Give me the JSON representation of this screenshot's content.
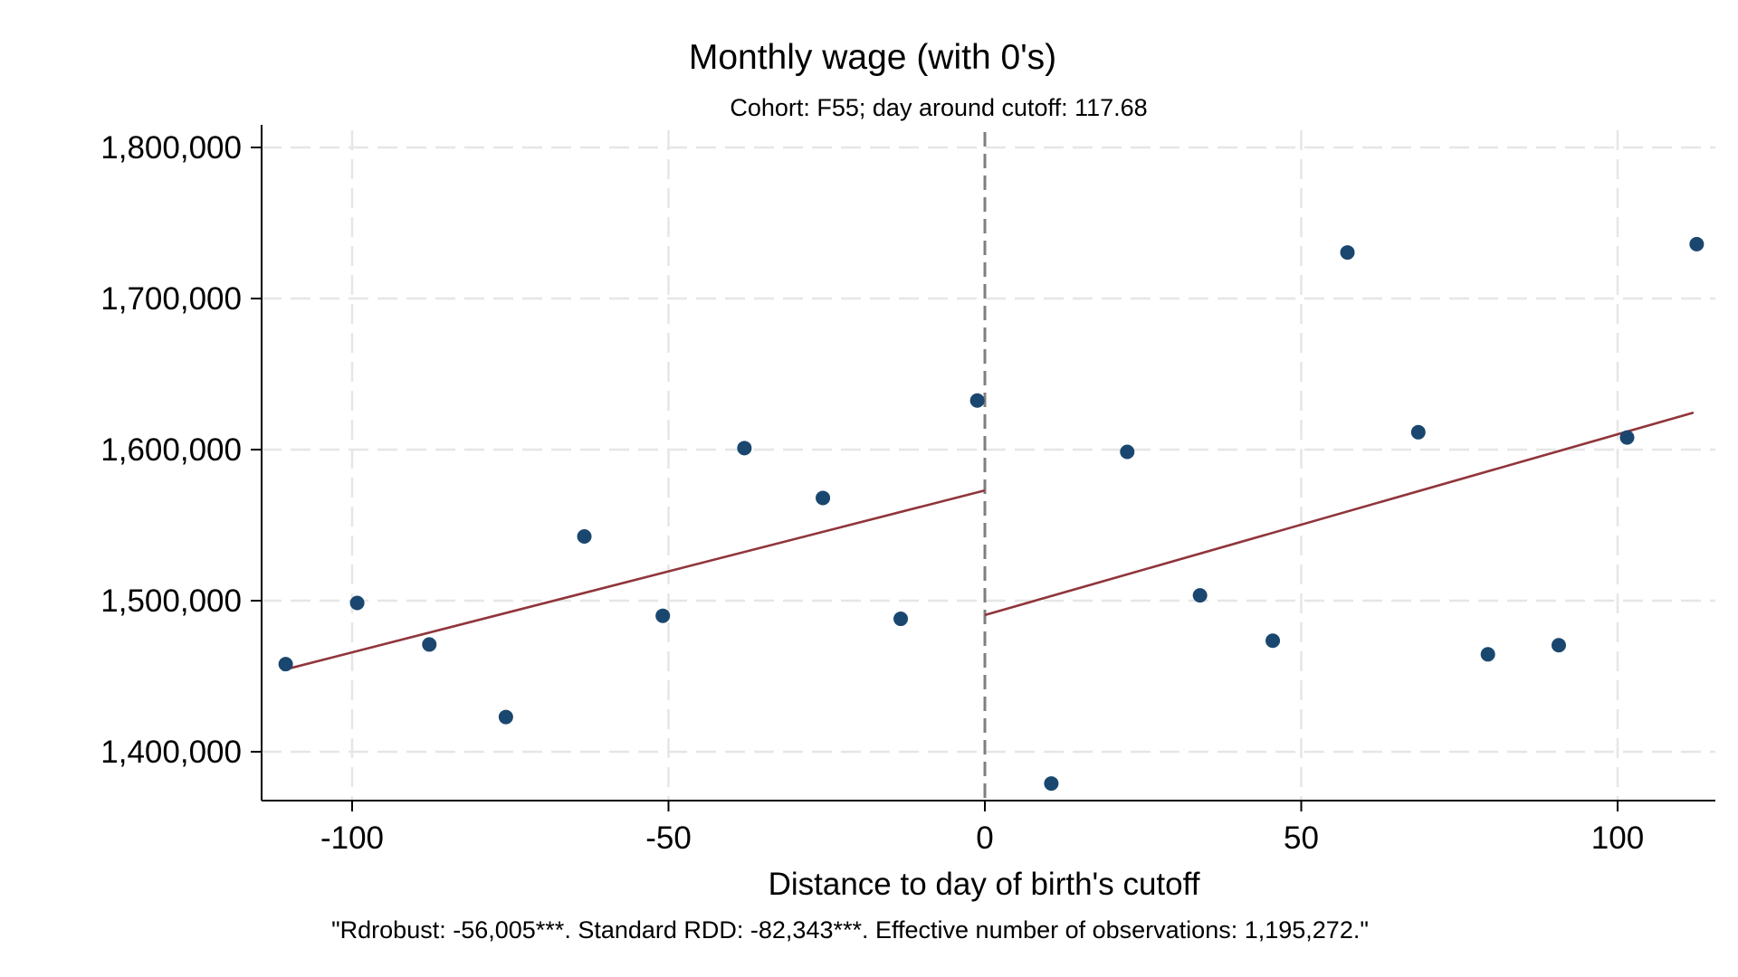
{
  "chart_data": {
    "type": "scatter",
    "title": "Monthly wage (with 0's)",
    "subtitle": "Cohort: F55; day around cutoff:  117.68",
    "xlabel": "Distance to day of birth's cutoff",
    "ylabel": "",
    "note": "\"Rdrobust: -56,005***. Standard RDD: -82,343***. Effective number of observations: 1,195,272.\"",
    "xlim": [
      -115,
      115
    ],
    "ylim": [
      1365000,
      1815000
    ],
    "x_ticks": [
      -100,
      -50,
      0,
      50,
      100
    ],
    "x_tick_labels": [
      "-100",
      "-50",
      "0",
      "50",
      "100"
    ],
    "y_ticks": [
      1400000,
      1500000,
      1600000,
      1700000,
      1800000
    ],
    "y_tick_labels": [
      "1,400,000",
      "1,500,000",
      "1,600,000",
      "1,700,000",
      "1,800,000"
    ],
    "grid": true,
    "cutoff_x": 0,
    "colors": {
      "points": "#1a476f",
      "fit": "#90353b",
      "cutoff": "#7f7f7f",
      "grid": "#e6e6e6"
    },
    "series": [
      {
        "kind": "points",
        "x": [
          -110.5,
          -99.2,
          -87.8,
          -75.7,
          -63.3,
          -50.9,
          -38.0,
          -25.6,
          -13.3,
          -1.2,
          10.5,
          22.5,
          34.0,
          45.5,
          57.3,
          68.5,
          79.5,
          90.7,
          101.5,
          112.5
        ],
        "y": [
          1458000,
          1498500,
          1471000,
          1423000,
          1542500,
          1490000,
          1601000,
          1568000,
          1488000,
          1632500,
          1379000,
          1598500,
          1503500,
          1473500,
          1730500,
          1611500,
          1464500,
          1470500,
          1608000,
          1736000
        ]
      },
      {
        "kind": "fit-left",
        "x": [
          -111,
          0
        ],
        "y": [
          1454000,
          1573000
        ]
      },
      {
        "kind": "fit-right",
        "x": [
          0,
          112
        ],
        "y": [
          1490500,
          1624500
        ]
      }
    ]
  }
}
